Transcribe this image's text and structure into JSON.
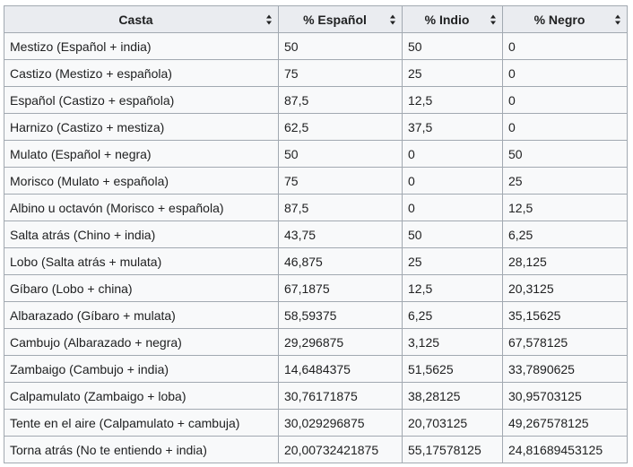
{
  "table": {
    "columns": [
      {
        "label": "Casta"
      },
      {
        "label": "% Español"
      },
      {
        "label": "% Indio"
      },
      {
        "label": "% Negro"
      }
    ],
    "rows": [
      [
        "Mestizo (Español + india)",
        "50",
        "50",
        "0"
      ],
      [
        "Castizo (Mestizo + española)",
        "75",
        "25",
        "0"
      ],
      [
        "Español (Castizo + española)",
        "87,5",
        "12,5",
        "0"
      ],
      [
        "Harnizo (Castizo + mestiza)",
        "62,5",
        "37,5",
        "0"
      ],
      [
        "Mulato (Español + negra)",
        "50",
        "0",
        "50"
      ],
      [
        "Morisco (Mulato + española)",
        "75",
        "0",
        "25"
      ],
      [
        "Albino u octavón (Morisco + española)",
        "87,5",
        "0",
        "12,5"
      ],
      [
        "Salta atrás (Chino + india)",
        "43,75",
        "50",
        "6,25"
      ],
      [
        "Lobo (Salta atrás + mulata)",
        "46,875",
        "25",
        "28,125"
      ],
      [
        "Gíbaro (Lobo + china)",
        "67,1875",
        "12,5",
        "20,3125"
      ],
      [
        "Albarazado (Gíbaro + mulata)",
        "58,59375",
        "6,25",
        "35,15625"
      ],
      [
        "Cambujo (Albarazado + negra)",
        "29,296875",
        "3,125",
        "67,578125"
      ],
      [
        "Zambaigo (Cambujo + india)",
        "14,6484375",
        "51,5625",
        "33,7890625"
      ],
      [
        "Calpamulato (Zambaigo + loba)",
        "30,76171875",
        "38,28125",
        "30,95703125"
      ],
      [
        "Tente en el aire (Calpamulato + cambuja)",
        "30,029296875",
        "20,703125",
        "49,267578125"
      ],
      [
        "Torna atrás (No te entiendo + india)",
        "20,00732421875",
        "55,17578125",
        "24,81689453125"
      ]
    ]
  },
  "icons": {
    "sort": "sort-icon"
  },
  "colors": {
    "header_bg": "#eaecf0",
    "cell_bg": "#f8f9fa",
    "border": "#a2a9b1",
    "text": "#202122"
  }
}
